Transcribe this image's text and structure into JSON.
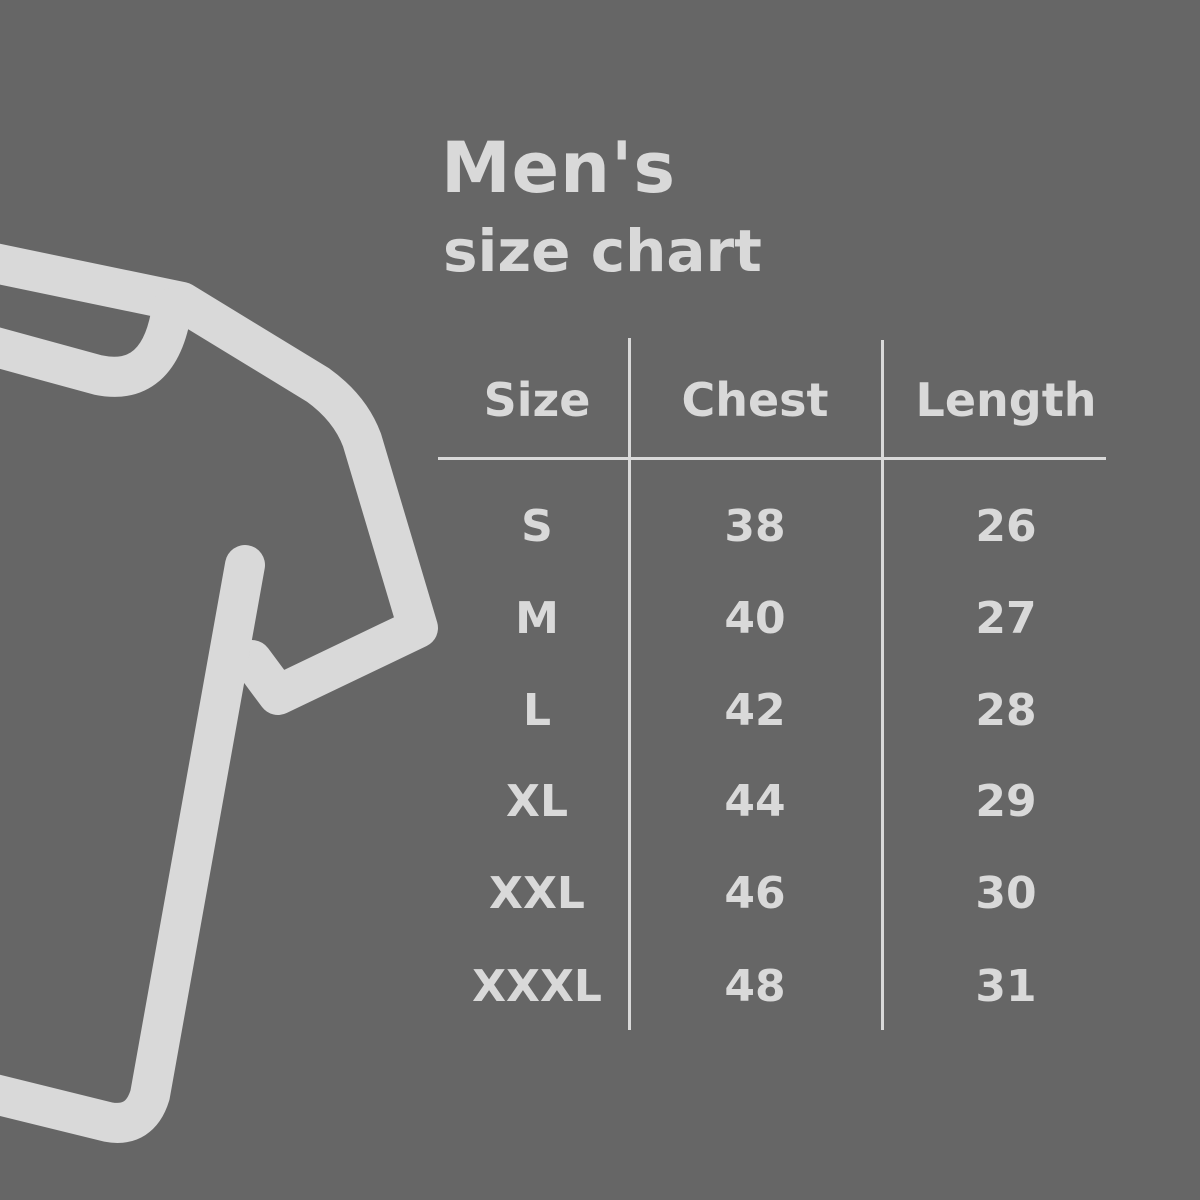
{
  "title": "Men's",
  "subtitle": "size chart",
  "colors": {
    "background": "#666666",
    "foreground": "#d9d9d9"
  },
  "illustration": "t-shirt-outline-icon",
  "table": {
    "headers": [
      "Size",
      "Chest",
      "Length"
    ],
    "rows": [
      [
        "S",
        "38",
        "26"
      ],
      [
        "M",
        "40",
        "27"
      ],
      [
        "L",
        "42",
        "28"
      ],
      [
        "XL",
        "44",
        "29"
      ],
      [
        "XXL",
        "46",
        "30"
      ],
      [
        "XXXL",
        "48",
        "31"
      ]
    ]
  }
}
